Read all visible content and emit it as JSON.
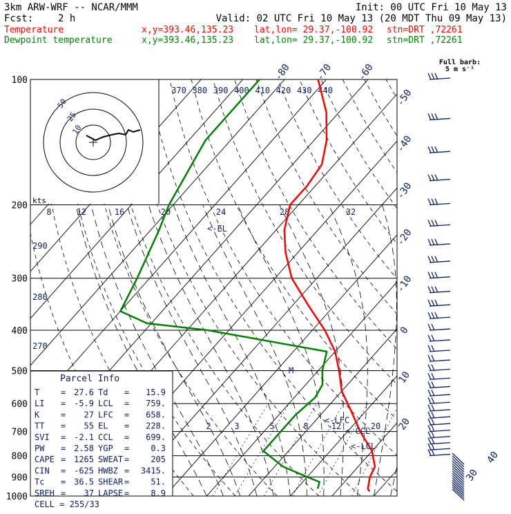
{
  "header": {
    "model": "3km ARW-WRF -- NCAR/MMM",
    "init": "Init: 00 UTC Fri 10 May 13",
    "fcst_label": "Fcst:",
    "fcst_value": "2 h",
    "valid": "Valid: 02 UTC Fri 10 May 13 (20 MDT Thu 09 May 13)",
    "lines": [
      {
        "name": "Temperature",
        "xy": "x,y=393.46,135.23",
        "latlon": "lat,lon= 29.37,-100.92",
        "stn": "stn=DRT ,72261",
        "color": "#ff0000"
      },
      {
        "name": "Dewpoint temperature",
        "xy": "x,y=393.46,135.23",
        "latlon": "lat,lon= 29.37,-100.92",
        "stn": "stn=DRT ,72261",
        "color": "#008000"
      }
    ]
  },
  "barb_key": {
    "line1": "Full barb:",
    "line2": "5 m s⁻¹"
  },
  "hodograph": {
    "rings": [
      "10",
      "25",
      "50"
    ]
  },
  "hodo_kts_label": "kts",
  "hodo_kts_ticks": [
    "8",
    "12",
    "16",
    "20",
    "24",
    "28",
    "32"
  ],
  "theta_e_labels": [
    "370",
    "380",
    "390",
    "400",
    "410",
    "420",
    "430",
    "440"
  ],
  "theta_labels": [
    "290",
    "280",
    "270"
  ],
  "mixing_ratio_labels": [
    "2",
    "3",
    "5",
    "8",
    "12",
    "20"
  ],
  "parcel_markers": [
    {
      "label": "<-EL",
      "p": 228
    },
    {
      "label": "<-LFC",
      "p": 658
    },
    {
      "label": "<-CCL",
      "p": 699
    },
    {
      "label": "<-LCL",
      "p": 759
    },
    {
      "label": "M",
      "p": 500
    }
  ],
  "parcel_info": {
    "title": "Parcel Info",
    "rows": [
      [
        "T",
        "27.6",
        "Td",
        "15.9"
      ],
      [
        "LI",
        "-5.9",
        "LCL",
        "759."
      ],
      [
        "K",
        "27",
        "LFC",
        "658."
      ],
      [
        "TT",
        "55",
        "EL",
        "228."
      ],
      [
        "SVI",
        "-2.1",
        "CCL",
        "699."
      ],
      [
        "PW",
        "2.58",
        "YGP",
        "0.3"
      ],
      [
        "CAPE",
        "1265",
        "SWEAT",
        "205"
      ],
      [
        "CIN",
        "-625",
        "HWBZ",
        "3415."
      ],
      [
        "Tc",
        "36.5",
        "SHEAR",
        "51."
      ],
      [
        "SREH",
        "37",
        "LAPSE",
        "8.9"
      ]
    ],
    "cell": "CELL = 255/33"
  },
  "colors": {
    "temperature": "#ff0000",
    "dewpoint": "#008000",
    "isobars": "#000000",
    "labels": "#0a1e64",
    "hodograph": "#000000"
  },
  "chart_data": {
    "type": "line",
    "title": "",
    "xlabel": "",
    "ylabel": "",
    "y_scale": "log-pressure (hPa)",
    "pressure_levels": [
      100,
      200,
      300,
      400,
      500,
      600,
      700,
      800,
      900,
      1000
    ],
    "isotherm_labels": [
      "-80",
      "-70",
      "-60",
      "-50",
      "-40",
      "-30",
      "-20",
      "-10",
      "0",
      "10",
      "20",
      "30",
      "40"
    ],
    "series": [
      {
        "name": "Temperature",
        "points": [
          {
            "p": 100,
            "t": -72
          },
          {
            "p": 120,
            "t": -63
          },
          {
            "p": 140,
            "t": -57
          },
          {
            "p": 160,
            "t": -53
          },
          {
            "p": 180,
            "t": -52
          },
          {
            "p": 200,
            "t": -52
          },
          {
            "p": 230,
            "t": -48
          },
          {
            "p": 260,
            "t": -43
          },
          {
            "p": 300,
            "t": -36
          },
          {
            "p": 350,
            "t": -26
          },
          {
            "p": 400,
            "t": -17
          },
          {
            "p": 450,
            "t": -10
          },
          {
            "p": 500,
            "t": -5
          },
          {
            "p": 560,
            "t": 0
          },
          {
            "p": 620,
            "t": 6
          },
          {
            "p": 700,
            "t": 13
          },
          {
            "p": 780,
            "t": 20
          },
          {
            "p": 850,
            "t": 24
          },
          {
            "p": 900,
            "t": 25
          },
          {
            "p": 960,
            "t": 27
          },
          {
            "p": 975,
            "t": 28
          }
        ]
      },
      {
        "name": "Dewpoint temperature",
        "points": [
          {
            "p": 100,
            "t": -86
          },
          {
            "p": 140,
            "t": -86
          },
          {
            "p": 200,
            "t": -81
          },
          {
            "p": 230,
            "t": -78
          },
          {
            "p": 300,
            "t": -73
          },
          {
            "p": 360,
            "t": -70
          },
          {
            "p": 385,
            "t": -61
          },
          {
            "p": 400,
            "t": -45
          },
          {
            "p": 450,
            "t": -12
          },
          {
            "p": 500,
            "t": -9
          },
          {
            "p": 540,
            "t": -6
          },
          {
            "p": 580,
            "t": -5
          },
          {
            "p": 640,
            "t": -6
          },
          {
            "p": 700,
            "t": -6
          },
          {
            "p": 780,
            "t": -6
          },
          {
            "p": 850,
            "t": 2
          },
          {
            "p": 900,
            "t": 10
          },
          {
            "p": 925,
            "t": 14
          },
          {
            "p": 960,
            "t": 15
          }
        ]
      }
    ]
  }
}
